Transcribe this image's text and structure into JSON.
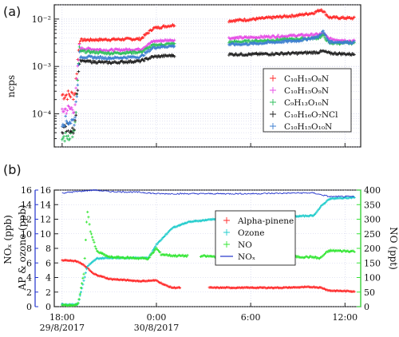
{
  "panel_labels": {
    "a": "(a)",
    "b": "(b)"
  },
  "colors": {
    "red": "#ff2a2a",
    "magenta": "#e64de6",
    "green": "#2fbf5c",
    "black": "#222222",
    "steelblue": "#3d7fd0",
    "cyan": "#22cccc",
    "lime": "#33e633",
    "blue": "#2233cc",
    "grid": "#c8cbe8"
  },
  "chart_data": [
    {
      "id": "a",
      "type": "scatter",
      "ylabel": "ncps",
      "yscale": "log",
      "ylim": [
        2e-05,
        0.02
      ],
      "xlim": [
        17.5,
        37.0
      ],
      "y_tick_labels": [
        "10⁻⁴",
        "10⁻³",
        "10⁻²"
      ],
      "grid": true,
      "legend_placement": "lower-right",
      "series": [
        {
          "name": "C₁₀H₁₅O₈N",
          "color": "#ff2a2a",
          "points": [
            [
              18.0,
              0.00025
            ],
            [
              18.8,
              0.00025
            ],
            [
              19.1,
              0.0036
            ],
            [
              21.0,
              0.0037
            ],
            [
              23.0,
              0.0038
            ],
            [
              23.8,
              0.0064
            ],
            [
              25.0,
              0.0074
            ],
            [
              27.0,
              0.0085
            ],
            [
              30.0,
              0.0098
            ],
            [
              33.0,
              0.012
            ],
            [
              34.0,
              0.0135
            ],
            [
              34.5,
              0.016
            ],
            [
              35.0,
              0.0108
            ],
            [
              36.6,
              0.0104
            ]
          ]
        },
        {
          "name": "C₁₀H₁₅O₉N",
          "color": "#e64de6",
          "points": [
            [
              18.0,
              0.00012
            ],
            [
              18.8,
              0.00013
            ],
            [
              19.1,
              0.0024
            ],
            [
              21.0,
              0.0022
            ],
            [
              23.0,
              0.0023
            ],
            [
              23.8,
              0.0034
            ],
            [
              25.0,
              0.0036
            ],
            [
              27.0,
              0.0038
            ],
            [
              30.0,
              0.0041
            ],
            [
              33.0,
              0.0045
            ],
            [
              34.3,
              0.0047
            ],
            [
              34.6,
              0.005
            ],
            [
              35.0,
              0.0038
            ],
            [
              36.6,
              0.0034
            ]
          ]
        },
        {
          "name": "C₉H₁₃O₁₀N",
          "color": "#2fbf5c",
          "points": [
            [
              18.0,
              3e-05
            ],
            [
              18.8,
              4e-05
            ],
            [
              19.1,
              0.0021
            ],
            [
              21.0,
              0.0019
            ],
            [
              23.0,
              0.002
            ],
            [
              23.8,
              0.0028
            ],
            [
              25.0,
              0.003
            ],
            [
              27.0,
              0.0031
            ],
            [
              30.0,
              0.0034
            ],
            [
              33.0,
              0.0038
            ],
            [
              34.3,
              0.004
            ],
            [
              34.6,
              0.0045
            ],
            [
              35.0,
              0.0031
            ],
            [
              36.6,
              0.0031
            ]
          ]
        },
        {
          "name": "C₁₀H₁₆O₇NCl",
          "color": "#222222",
          "points": [
            [
              18.0,
              5e-05
            ],
            [
              18.8,
              5e-05
            ],
            [
              19.1,
              0.0013
            ],
            [
              21.0,
              0.0012
            ],
            [
              23.0,
              0.0013
            ],
            [
              23.8,
              0.0016
            ],
            [
              25.0,
              0.0017
            ],
            [
              27.0,
              0.0018
            ],
            [
              30.0,
              0.0018
            ],
            [
              33.0,
              0.0019
            ],
            [
              34.3,
              0.002
            ],
            [
              34.6,
              0.0021
            ],
            [
              35.0,
              0.0019
            ],
            [
              36.6,
              0.0018
            ]
          ]
        },
        {
          "name": "C₁₀H₁₅O₁₀N",
          "color": "#3d7fd0",
          "points": [
            [
              18.0,
              7e-05
            ],
            [
              18.8,
              7e-05
            ],
            [
              19.1,
              0.0016
            ],
            [
              21.0,
              0.0015
            ],
            [
              23.0,
              0.0016
            ],
            [
              23.8,
              0.0025
            ],
            [
              25.0,
              0.0027
            ],
            [
              27.0,
              0.0028
            ],
            [
              30.0,
              0.003
            ],
            [
              33.0,
              0.0035
            ],
            [
              34.3,
              0.0042
            ],
            [
              34.6,
              0.0055
            ],
            [
              35.0,
              0.0033
            ],
            [
              36.6,
              0.0032
            ]
          ]
        }
      ]
    },
    {
      "id": "b",
      "type": "scatter",
      "x_tick_labels": [
        "18:00",
        "0:00",
        "6:00",
        "12:00"
      ],
      "x_tick_values": [
        18,
        24,
        30,
        36
      ],
      "x_date_labels": [
        "29/8/2017",
        "30/8/2017"
      ],
      "xlim": [
        17.5,
        37.0
      ],
      "left_axis": {
        "label": "NOₓ (ppb)",
        "ylim": [
          0,
          16
        ],
        "ticks": [
          0,
          2,
          4,
          6,
          8,
          10,
          12,
          14,
          16
        ],
        "color": "#2233cc"
      },
      "inner_axis": {
        "label": "AP & ozone (ppb)",
        "ylim": [
          0,
          16
        ],
        "ticks": [
          0,
          2,
          4,
          6,
          8,
          10,
          12,
          14,
          16
        ]
      },
      "right_axis": {
        "label": "NO (ppt)",
        "ylim": [
          0,
          400
        ],
        "ticks": [
          0,
          50,
          100,
          150,
          200,
          250,
          300,
          350,
          400
        ],
        "color": "#33e633"
      },
      "grid": true,
      "legend_placement": "center-right",
      "series": [
        {
          "name": "Alpha-pinene",
          "axis": "inner",
          "color": "#ff2a2a",
          "points": [
            [
              18.0,
              6.4
            ],
            [
              19.0,
              6.2
            ],
            [
              19.5,
              5.5
            ],
            [
              20.0,
              4.5
            ],
            [
              21.0,
              3.8
            ],
            [
              23.0,
              3.5
            ],
            [
              24.0,
              3.6
            ],
            [
              24.5,
              3.0
            ],
            [
              25.0,
              2.6
            ],
            [
              25.5,
              2.6
            ],
            [
              28.0,
              2.6
            ],
            [
              32.0,
              2.6
            ],
            [
              34.0,
              2.7
            ],
            [
              34.5,
              2.6
            ],
            [
              35.0,
              2.2
            ],
            [
              36.6,
              2.1
            ]
          ]
        },
        {
          "name": "Ozone",
          "axis": "inner",
          "color": "#22cccc",
          "points": [
            [
              18.0,
              0.3
            ],
            [
              19.0,
              0.3
            ],
            [
              19.2,
              2.0
            ],
            [
              19.6,
              5.5
            ],
            [
              20.2,
              6.6
            ],
            [
              21.0,
              6.7
            ],
            [
              23.5,
              6.7
            ],
            [
              24.0,
              8.5
            ],
            [
              25.0,
              10.8
            ],
            [
              26.0,
              11.6
            ],
            [
              28.0,
              12.1
            ],
            [
              32.0,
              12.3
            ],
            [
              34.0,
              12.5
            ],
            [
              34.5,
              13.8
            ],
            [
              35.0,
              14.8
            ],
            [
              36.6,
              15.0
            ]
          ]
        },
        {
          "name": "NO",
          "axis": "right",
          "color": "#33e633",
          "points": [
            [
              18.0,
              5
            ],
            [
              19.0,
              5
            ],
            [
              19.4,
              120
            ],
            [
              19.6,
              335
            ],
            [
              19.8,
              260
            ],
            [
              20.2,
              190
            ],
            [
              21.0,
              170
            ],
            [
              23.5,
              165
            ],
            [
              24.0,
              200
            ],
            [
              24.3,
              180
            ],
            [
              25.0,
              175
            ],
            [
              28.0,
              172
            ],
            [
              32.0,
              172
            ],
            [
              34.0,
              170
            ],
            [
              34.4,
              165
            ],
            [
              34.7,
              180
            ],
            [
              35.0,
              192
            ],
            [
              36.6,
              190
            ]
          ]
        },
        {
          "name": "NOₓ",
          "axis": "left",
          "color": "#2233cc",
          "line": true,
          "points": [
            [
              18.0,
              15.6
            ],
            [
              19.0,
              15.8
            ],
            [
              20.0,
              16.0
            ],
            [
              21.0,
              15.8
            ],
            [
              23.0,
              15.7
            ],
            [
              24.0,
              15.5
            ],
            [
              27.0,
              15.5
            ],
            [
              30.0,
              15.5
            ],
            [
              33.0,
              15.6
            ],
            [
              34.0,
              15.6
            ],
            [
              35.0,
              15.1
            ],
            [
              36.6,
              15.1
            ]
          ]
        }
      ]
    }
  ]
}
